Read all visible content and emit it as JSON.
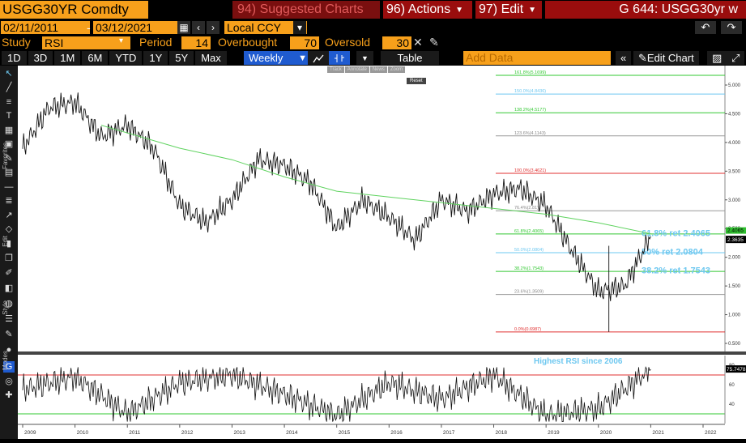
{
  "header": {
    "ticker": "USGG30YR Comdty",
    "suggested": "94) Suggested Charts",
    "actions": "96) Actions",
    "edit": "97) Edit",
    "right_title": "G 644: USGG30yr w"
  },
  "dates": {
    "start": "02/11/2011",
    "end": "03/12/2021",
    "currency": "Local CCY"
  },
  "study": {
    "study_label": "Study",
    "study_value": "RSI",
    "period_label": "Period",
    "period_value": "14",
    "overbought_label": "Overbought",
    "overbought_value": "70",
    "oversold_label": "Oversold",
    "oversold_value": "30"
  },
  "periods": [
    "1D",
    "3D",
    "1M",
    "6M",
    "YTD",
    "1Y",
    "5Y",
    "Max"
  ],
  "frequency": "Weekly",
  "toolbar": {
    "table": "Table",
    "add_data_placeholder": "Add Data",
    "edit_chart": "Edit Chart"
  },
  "mini_toolbar": [
    "Track",
    "Annotate",
    "News",
    "Zoom",
    "Reset"
  ],
  "left_toolbar_labels": [
    "Favorites",
    "Edit",
    "Style",
    "Modes"
  ],
  "fib_levels": [
    {
      "label": "161.8%(5.1699)",
      "value": 5.1699,
      "color": "#32c832"
    },
    {
      "label": "150.0%(4.8436)",
      "value": 4.8436,
      "color": "#6ec8f0"
    },
    {
      "label": "138.2%(4.5177)",
      "value": 4.5177,
      "color": "#32c832"
    },
    {
      "label": "123.6%(4.1143)",
      "value": 4.1143,
      "color": "#999999"
    },
    {
      "label": "100.0%(3.4621)",
      "value": 3.4621,
      "color": "#e03030"
    },
    {
      "label": "76.4%(2.81)",
      "value": 2.81,
      "color": "#999999"
    },
    {
      "label": "61.8%(2.4065)",
      "value": 2.4065,
      "color": "#32c832"
    },
    {
      "label": "50.0%(2.0804)",
      "value": 2.0804,
      "color": "#6ec8f0"
    },
    {
      "label": "38.2%(1.7543)",
      "value": 1.7543,
      "color": "#32c832"
    },
    {
      "label": "23.6%(1.3509)",
      "value": 1.3509,
      "color": "#999999"
    },
    {
      "label": "0.0%(0.6987)",
      "value": 0.6987,
      "color": "#e03030"
    }
  ],
  "annotations": {
    "ret618": "61.8% ret 2.4065",
    "ret50": "50% ret 2.0804",
    "ret382": "38.2% ret 1.7543",
    "rsi_note": "Highest RSI since 2006"
  },
  "price_axis": [
    "5.000",
    "4.500",
    "4.000",
    "3.500",
    "3.000",
    "2.500",
    "2.000",
    "1.500",
    "1.000",
    "0.500"
  ],
  "price_badges": {
    "ma": "2.4065",
    "last": "2.3635"
  },
  "rsi_axis": [
    "80",
    "60",
    "40"
  ],
  "rsi_badge": "75.7478",
  "x_axis": [
    "2009",
    "2010",
    "2011",
    "2012",
    "2013",
    "2014",
    "2015",
    "2016",
    "2017",
    "2018",
    "2019",
    "2020",
    "2021",
    "2022"
  ],
  "chart_data": {
    "type": "line",
    "series": [
      {
        "name": "USGG30YR weekly close",
        "x": [
          "2009",
          "2009.5",
          "2010",
          "2010.5",
          "2011",
          "2011.5",
          "2012",
          "2012.5",
          "2013",
          "2013.5",
          "2014",
          "2014.5",
          "2015",
          "2015.5",
          "2016",
          "2016.5",
          "2017",
          "2017.5",
          "2018",
          "2018.5",
          "2019",
          "2019.5",
          "2020",
          "2020.5",
          "2021"
        ],
        "values": [
          3.9,
          4.6,
          4.7,
          4.1,
          4.3,
          3.9,
          2.9,
          2.6,
          3.0,
          3.7,
          3.6,
          3.3,
          2.5,
          3.0,
          2.7,
          2.3,
          3.0,
          2.8,
          3.1,
          3.2,
          2.9,
          2.1,
          1.4,
          1.5,
          2.36
        ]
      },
      {
        "name": "Moving average",
        "x": [
          "2010.5",
          "2012",
          "2013",
          "2014",
          "2015",
          "2016",
          "2017",
          "2018",
          "2019",
          "2020",
          "2021"
        ],
        "values": [
          4.3,
          3.9,
          3.7,
          3.4,
          3.15,
          3.05,
          2.95,
          2.85,
          2.75,
          2.6,
          2.41
        ]
      },
      {
        "name": "RSI",
        "x": [
          "2009",
          "2010",
          "2011",
          "2012",
          "2013",
          "2014",
          "2015",
          "2016",
          "2017",
          "2018",
          "2019",
          "2020",
          "2021"
        ],
        "values": [
          55,
          68,
          30,
          62,
          70,
          50,
          28,
          62,
          45,
          70,
          28,
          35,
          75.75
        ]
      }
    ],
    "ylim": [
      0.5,
      5.3
    ],
    "rsi_ylim": [
      20,
      90
    ],
    "rsi_overbought": 70,
    "rsi_oversold": 30
  }
}
